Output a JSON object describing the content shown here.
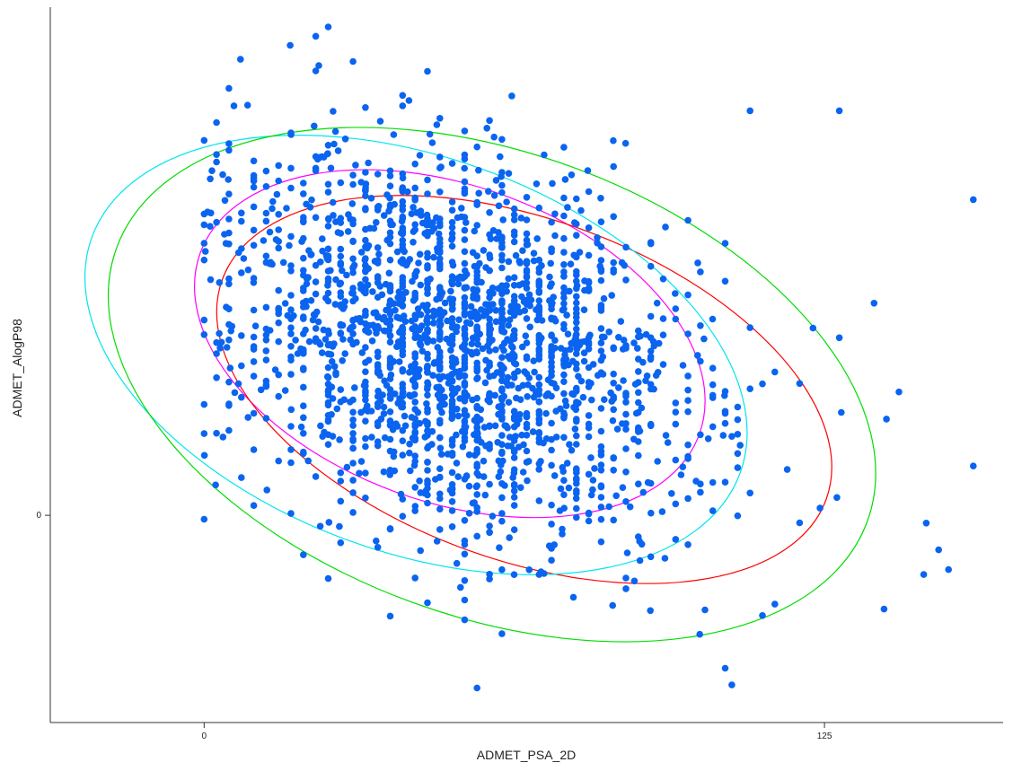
{
  "chart_data": {
    "type": "scatter",
    "xlabel": "ADMET_PSA_2D",
    "ylabel": "ADMET_AlogP98",
    "x_ticks": [
      {
        "value": 0,
        "label": "0"
      },
      {
        "value": 125,
        "label": "125"
      }
    ],
    "y_ticks": [
      {
        "value": 0,
        "label": "0"
      }
    ],
    "xlim": [
      -31,
      161
    ],
    "ylim": [
      -4.2,
      10.3
    ],
    "grid": false,
    "legend": "none",
    "point_color": "#0a64f0",
    "point_count": 2100,
    "density": {
      "cx": 50,
      "cy": 3.5,
      "sx": 22,
      "sy": 1.9,
      "rho": -0.3,
      "outliers": [
        [
          25,
          9.9
        ],
        [
          30,
          9.2
        ],
        [
          45,
          9.0
        ],
        [
          62,
          8.5
        ],
        [
          6,
          8.3
        ],
        [
          128,
          8.2
        ],
        [
          110,
          8.2
        ],
        [
          40,
          8.3
        ],
        [
          155,
          6.4
        ],
        [
          155,
          1.0
        ],
        [
          10,
          0.2
        ],
        [
          55,
          -3.5
        ],
        [
          105,
          -3.1
        ],
        [
          60,
          -2.4
        ],
        [
          115,
          -1.8
        ],
        [
          137,
          -1.9
        ],
        [
          150,
          -1.1
        ],
        [
          148,
          -0.7
        ],
        [
          145,
          -1.2
        ],
        [
          20,
          -0.8
        ],
        [
          0,
          7.6
        ],
        [
          135,
          4.3
        ],
        [
          128,
          3.6
        ],
        [
          140,
          2.5
        ]
      ]
    },
    "series": [
      {
        "color": "#ff00ff",
        "cx": 49.5,
        "cy": 3.48,
        "rx": 107.0,
        "ry": 3.2,
        "angle_deg": 20
      },
      {
        "color": "#ff0000",
        "cx": 64.5,
        "cy": 2.55,
        "rx": 129.5,
        "ry": 3.45,
        "angle_deg": 20
      },
      {
        "color": "#00e5ee",
        "cx": 42.7,
        "cy": 3.25,
        "rx": 139.0,
        "ry": 4.0,
        "angle_deg": 20
      },
      {
        "color": "#00dd00",
        "cx": 58.0,
        "cy": 2.65,
        "rx": 161.0,
        "ry": 4.7,
        "angle_deg": 20
      }
    ]
  }
}
